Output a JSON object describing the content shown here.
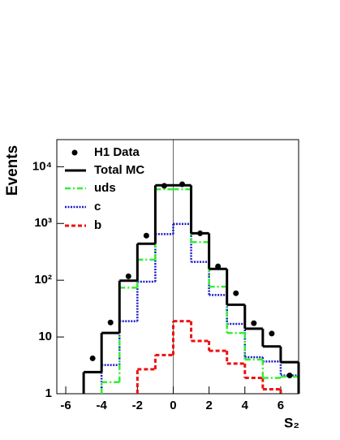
{
  "chart_data": {
    "type": "histogram",
    "y_label": "Events",
    "x_label": "S₂",
    "bins": [
      -5,
      -4,
      -3,
      -2,
      -1,
      0,
      1,
      2,
      3,
      4,
      5,
      6,
      7
    ],
    "xlim": [
      -6.5,
      7
    ],
    "xticks": [
      -6,
      -4,
      -2,
      0,
      2,
      4,
      6
    ],
    "ylim": [
      1,
      30000
    ],
    "log_y": true,
    "yticks": [
      1,
      10,
      {
        "value": 100,
        "label": "10²"
      },
      {
        "value": 1000,
        "label": "10³"
      },
      {
        "value": 10000,
        "label": "10⁴"
      }
    ],
    "points": {
      "name": "H1 Data",
      "color": "#000000",
      "x": [
        -4.5,
        -3.5,
        -2.5,
        -1.5,
        -0.5,
        0.5,
        1.5,
        2.5,
        3.5,
        4.5,
        5.5,
        6.5
      ],
      "values": [
        4.2,
        18,
        117,
        610,
        4600,
        4900,
        670,
        175,
        59,
        17.5,
        11.5,
        2.1
      ]
    },
    "series": [
      {
        "name": "Total MC",
        "color": "#000000",
        "dash": "solid",
        "values": [
          2.4,
          11.8,
          98,
          440,
          4700,
          4700,
          670,
          158,
          37,
          14,
          6.8,
          3.6
        ]
      },
      {
        "name": "uds",
        "color": "#33ee33",
        "dash": "dashdot",
        "values": [
          null,
          1.6,
          74,
          230,
          4000,
          4000,
          470,
          77,
          11.8,
          4,
          1.9,
          2
        ]
      },
      {
        "name": "c",
        "color": "#1a1acc",
        "dash": "dotted",
        "values": [
          null,
          3.2,
          19,
          94,
          650,
          980,
          210,
          55,
          17,
          4.4,
          3.7,
          2.1
        ]
      },
      {
        "name": "b",
        "color": "#ee1111",
        "dash": "dashed",
        "values": [
          null,
          null,
          null,
          2.7,
          4.8,
          19,
          8.5,
          5.7,
          3.4,
          1.9,
          1.2,
          null
        ]
      }
    ]
  }
}
